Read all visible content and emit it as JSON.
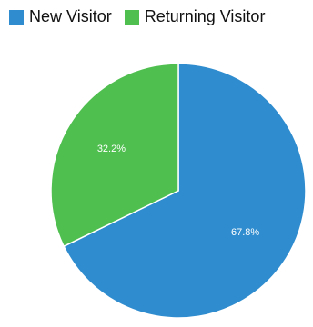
{
  "chart_data": {
    "type": "pie",
    "title": "",
    "slices": [
      {
        "name": "New Visitor",
        "value": 67.8,
        "label": "67.8%",
        "color": "#2e8ccf"
      },
      {
        "name": "Returning Visitor",
        "value": 32.2,
        "label": "32.2%",
        "color": "#4fbf4f"
      }
    ],
    "start_angle_deg": 0,
    "direction": "clockwise",
    "legend": {
      "position": "top-left",
      "items": [
        {
          "label": "New Visitor",
          "color": "#2e8ccf"
        },
        {
          "label": "Returning Visitor",
          "color": "#4fbf4f"
        }
      ]
    },
    "slice_border_color": "#ffffff",
    "label_color": "#ffffff"
  }
}
